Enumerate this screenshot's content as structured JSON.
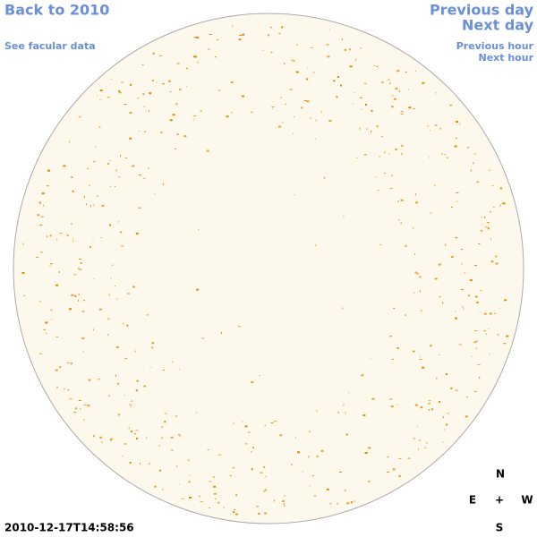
{
  "header": {
    "back_link": "Back to 2010",
    "facular_link": "See facular data",
    "previous_day": "Previous day",
    "next_day": "Next day",
    "previous_hour": "Previous hour",
    "next_hour": "Next hour"
  },
  "timestamp": "2010-12-17T14:58:56",
  "compass": {
    "north": "N",
    "east": "E",
    "center": "+",
    "west": "W",
    "south": "S"
  }
}
